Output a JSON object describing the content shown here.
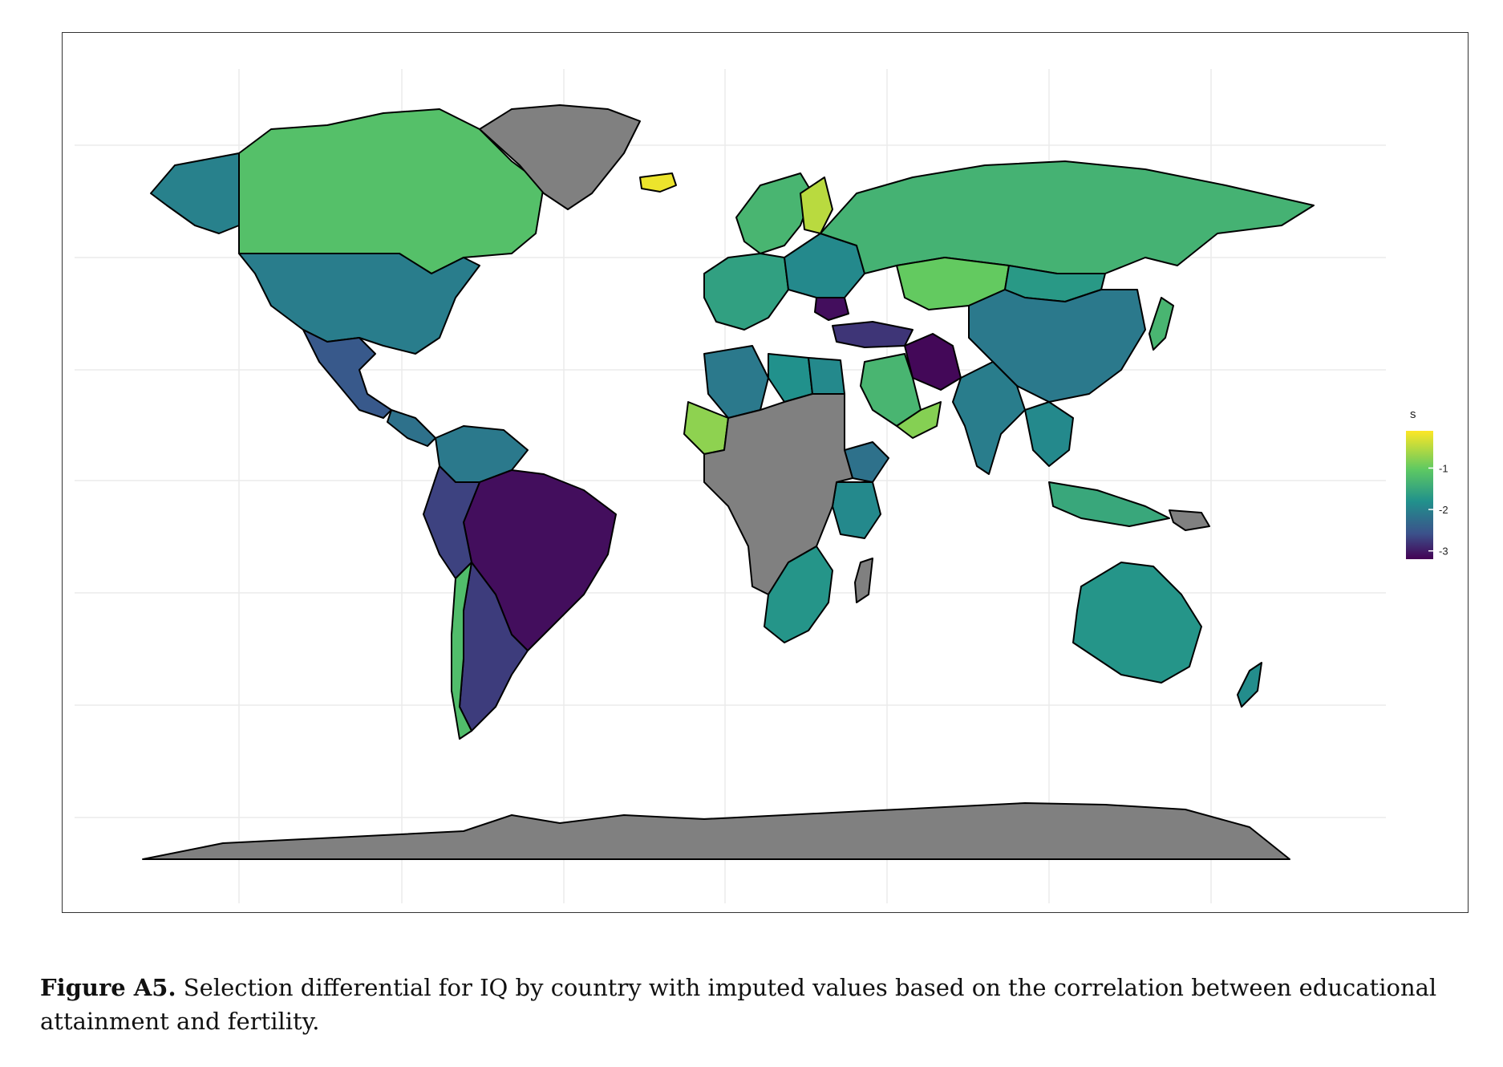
{
  "figure": {
    "caption_label": "Figure A5.",
    "caption_text": "Selection differential for IQ by country with imputed values based on the correlation between educational attainment and fertility."
  },
  "legend": {
    "title": "s",
    "ticks": [
      "-1",
      "-2",
      "-3"
    ],
    "colormap": "viridis",
    "range": [
      -3.2,
      -0.1
    ],
    "missing_color": "#808080"
  },
  "map_data": {
    "type": "choropleth",
    "projection": "equirectangular",
    "regions": [
      {
        "name": "Canada",
        "value": -1.15
      },
      {
        "name": "Alaska (USA)",
        "value": -2.0
      },
      {
        "name": "USA",
        "value": -2.05
      },
      {
        "name": "Mexico",
        "value": -2.5
      },
      {
        "name": "Central America",
        "value": -2.2
      },
      {
        "name": "Colombia / Venezuela",
        "value": -2.1
      },
      {
        "name": "Brazil",
        "value": -3.1
      },
      {
        "name": "Peru / Bolivia",
        "value": -2.7
      },
      {
        "name": "Argentina",
        "value": -2.75
      },
      {
        "name": "Chile",
        "value": -1.2
      },
      {
        "name": "Greenland",
        "value": null
      },
      {
        "name": "Iceland",
        "value": -0.2
      },
      {
        "name": "Scandinavia",
        "value": -1.3
      },
      {
        "name": "Finland",
        "value": -0.5
      },
      {
        "name": "Western Europe",
        "value": -1.6
      },
      {
        "name": "Eastern Europe",
        "value": -1.9
      },
      {
        "name": "Romania",
        "value": -3.1
      },
      {
        "name": "Turkey",
        "value": -2.8
      },
      {
        "name": "Russia",
        "value": -1.35
      },
      {
        "name": "Kazakhstan",
        "value": -1.0
      },
      {
        "name": "Mongolia",
        "value": -1.7
      },
      {
        "name": "China",
        "value": -2.1
      },
      {
        "name": "Iran",
        "value": -3.15
      },
      {
        "name": "Saudi Arabia",
        "value": -1.3
      },
      {
        "name": "Yemen/Oman",
        "value": -0.8
      },
      {
        "name": "India",
        "value": -2.05
      },
      {
        "name": "Southeast Asia",
        "value": -1.9
      },
      {
        "name": "Indonesia",
        "value": -1.5
      },
      {
        "name": "Japan",
        "value": -1.3
      },
      {
        "name": "Algeria",
        "value": -2.1
      },
      {
        "name": "Libya",
        "value": -1.8
      },
      {
        "name": "Egypt",
        "value": -1.9
      },
      {
        "name": "Mali",
        "value": -0.75
      },
      {
        "name": "Ethiopia",
        "value": -2.2
      },
      {
        "name": "Kenya/Tanzania",
        "value": -1.9
      },
      {
        "name": "Central Africa",
        "value": null
      },
      {
        "name": "Southern Africa",
        "value": -1.75
      },
      {
        "name": "Madagascar",
        "value": null
      },
      {
        "name": "Australia",
        "value": -1.75
      },
      {
        "name": "New Zealand",
        "value": -1.85
      },
      {
        "name": "Papua New Guinea",
        "value": null
      },
      {
        "name": "Antarctica",
        "value": null
      }
    ]
  }
}
